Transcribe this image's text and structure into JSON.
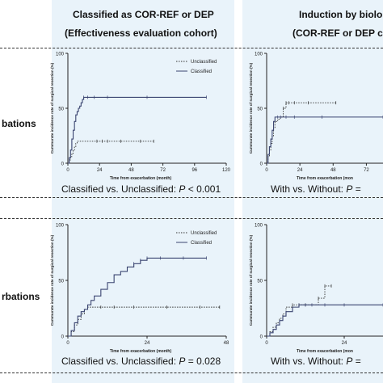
{
  "headers": {
    "left_line1": "Classified as COR-REF or DEP",
    "left_line2": "(Effectiveness evaluation cohort)",
    "right_line1": "Induction by biolo",
    "right_line2": "(COR-REF or DEP c"
  },
  "row_labels": {
    "row1": "bations",
    "row2": "rbations"
  },
  "comparisons": {
    "top_left": {
      "prefix": "Classified vs. Unclassified: ",
      "p": "P",
      "value": " < 0.001"
    },
    "top_right": {
      "prefix": "With vs. Without: ",
      "p": "P",
      "value": " ="
    },
    "bottom_left": {
      "prefix": "Classified vs. Unclassified: ",
      "p": "P",
      "value": " = 0.028"
    },
    "bottom_right": {
      "prefix": "With vs. Without: ",
      "p": "P",
      "value": " ="
    }
  },
  "chart_data": [
    {
      "type": "line",
      "step": true,
      "ylabel": "Cummurate incidence rate of surgical resection (%)",
      "xlabel": "Time from exacerbation (month)",
      "xlim": [
        0,
        120
      ],
      "ylim": [
        0,
        100
      ],
      "xticks": [
        0,
        24,
        48,
        72,
        96,
        120
      ],
      "yticks": [
        0,
        50,
        100
      ],
      "legend_position": "top-right",
      "series": [
        {
          "name": "Unclassified",
          "style": "dotted",
          "color": "#333333",
          "x": [
            0,
            1,
            2,
            3,
            4,
            5,
            6,
            7,
            8,
            10,
            12,
            14,
            16,
            18,
            20,
            22,
            26,
            30,
            40,
            55,
            65
          ],
          "y": [
            0,
            3,
            6,
            9,
            12,
            15,
            18,
            20,
            20,
            20,
            20,
            20,
            20,
            20,
            20,
            20,
            20,
            20,
            20,
            20,
            20
          ]
        },
        {
          "name": "Classified",
          "style": "solid",
          "color": "#3a4470",
          "x": [
            0,
            1,
            2,
            3,
            4,
            5,
            6,
            7,
            8,
            9,
            10,
            11,
            12,
            15,
            20,
            30,
            60,
            105
          ],
          "y": [
            0,
            5,
            12,
            22,
            30,
            38,
            44,
            47,
            50,
            52,
            55,
            58,
            60,
            60,
            60,
            60,
            60,
            60
          ]
        }
      ]
    },
    {
      "type": "line",
      "step": true,
      "ylabel": "Cummurate incidence rate of surgical resection (%)",
      "xlabel": "Time from exacerbation (mon",
      "xlim": [
        0,
        84
      ],
      "ylim": [
        0,
        100
      ],
      "xticks": [
        0,
        24,
        48,
        72
      ],
      "yticks": [
        0,
        50,
        100
      ],
      "series": [
        {
          "style": "dotted",
          "color": "#333333",
          "x": [
            0,
            1,
            2,
            3,
            4,
            5,
            6,
            8,
            10,
            12,
            14,
            16,
            20,
            30,
            50
          ],
          "y": [
            0,
            6,
            12,
            18,
            25,
            32,
            38,
            40,
            42,
            50,
            55,
            55,
            55,
            55,
            55
          ]
        },
        {
          "style": "solid",
          "color": "#3a4470",
          "x": [
            0,
            1,
            2,
            3,
            4,
            5,
            6,
            8,
            10,
            14,
            20,
            40,
            84
          ],
          "y": [
            0,
            8,
            15,
            22,
            30,
            38,
            42,
            42,
            42,
            42,
            42,
            42,
            42
          ]
        }
      ]
    },
    {
      "type": "line",
      "step": true,
      "ylabel": "Cummurate incidence rate of surgical resection (%)",
      "xlabel": "Time from exacerbation (month)",
      "xlim": [
        0,
        48
      ],
      "ylim": [
        0,
        100
      ],
      "xticks": [
        0,
        24,
        48
      ],
      "yticks": [
        0,
        50,
        100
      ],
      "legend_position": "top-right",
      "series": [
        {
          "name": "Unclassified",
          "style": "dotted",
          "color": "#333333",
          "x": [
            0,
            1,
            2,
            3,
            4,
            5,
            6,
            8,
            10,
            14,
            20,
            30,
            40,
            46
          ],
          "y": [
            0,
            4,
            10,
            15,
            20,
            24,
            26,
            26,
            26,
            26,
            26,
            26,
            26,
            26
          ]
        },
        {
          "name": "Classified",
          "style": "solid",
          "color": "#3a4470",
          "x": [
            0,
            1,
            2,
            3,
            4,
            5,
            6,
            7,
            8,
            10,
            12,
            14,
            16,
            18,
            20,
            22,
            24,
            28,
            35,
            42
          ],
          "y": [
            0,
            5,
            12,
            18,
            22,
            24,
            28,
            32,
            36,
            42,
            48,
            55,
            58,
            62,
            65,
            68,
            70,
            70,
            70,
            70
          ]
        }
      ]
    },
    {
      "type": "line",
      "step": true,
      "ylabel": "Cummurate incidence rate of surgical resection (%)",
      "xlabel": "Time from exacerbation (mon",
      "xlim": [
        0,
        36
      ],
      "ylim": [
        0,
        100
      ],
      "xticks": [
        0,
        24
      ],
      "yticks": [
        0,
        50,
        100
      ],
      "series": [
        {
          "style": "dotted",
          "color": "#333333",
          "x": [
            0,
            1,
            2,
            3,
            4,
            5,
            6,
            8,
            10,
            12,
            16,
            18,
            20
          ],
          "y": [
            0,
            4,
            8,
            12,
            16,
            20,
            26,
            28,
            28,
            28,
            34,
            45,
            45
          ]
        },
        {
          "style": "solid",
          "color": "#3a4470",
          "x": [
            0,
            1,
            2,
            3,
            4,
            5,
            6,
            8,
            10,
            12,
            14,
            18,
            24,
            36
          ],
          "y": [
            0,
            3,
            6,
            10,
            14,
            18,
            22,
            26,
            28,
            28,
            28,
            28,
            28,
            28
          ]
        }
      ]
    }
  ]
}
